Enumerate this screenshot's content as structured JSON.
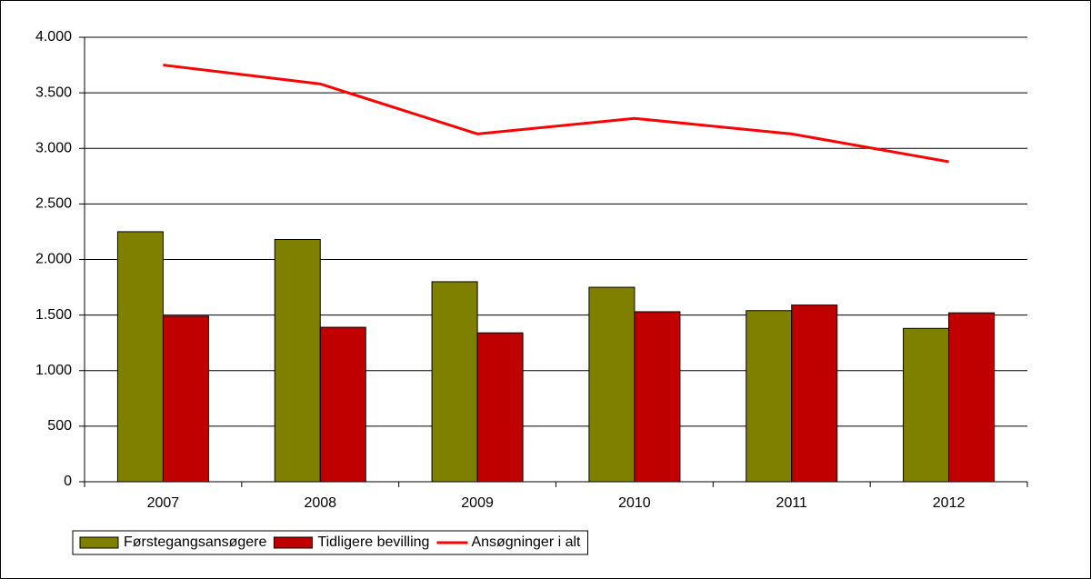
{
  "chart_data": {
    "type": "bar",
    "categories": [
      "2007",
      "2008",
      "2009",
      "2010",
      "2011",
      "2012"
    ],
    "series": [
      {
        "name": "Førstegangsansøgere",
        "color": "#808000",
        "values": [
          2250,
          2180,
          1800,
          1750,
          1540,
          1380
        ]
      },
      {
        "name": "Tidligere bevilling",
        "color": "#c00000",
        "values": [
          1490,
          1390,
          1340,
          1530,
          1590,
          1520
        ]
      },
      {
        "name": "Ansøgninger i alt",
        "type": "line",
        "color": "#ff0000",
        "values": [
          3750,
          3580,
          3130,
          3270,
          3130,
          2880
        ]
      }
    ],
    "ylim": [
      0,
      4000
    ],
    "yticks": [
      0,
      500,
      {
        "value": 1000,
        "label": "1.000"
      },
      {
        "value": 1500,
        "label": "1.500"
      },
      {
        "value": 2000,
        "label": "2.000"
      },
      {
        "value": 2500,
        "label": "2.500"
      },
      {
        "value": 3000,
        "label": "3.000"
      },
      {
        "value": 3500,
        "label": "3.500"
      },
      {
        "value": 4000,
        "label": "4.000"
      }
    ],
    "grid": true,
    "legend": "bottom-left"
  }
}
